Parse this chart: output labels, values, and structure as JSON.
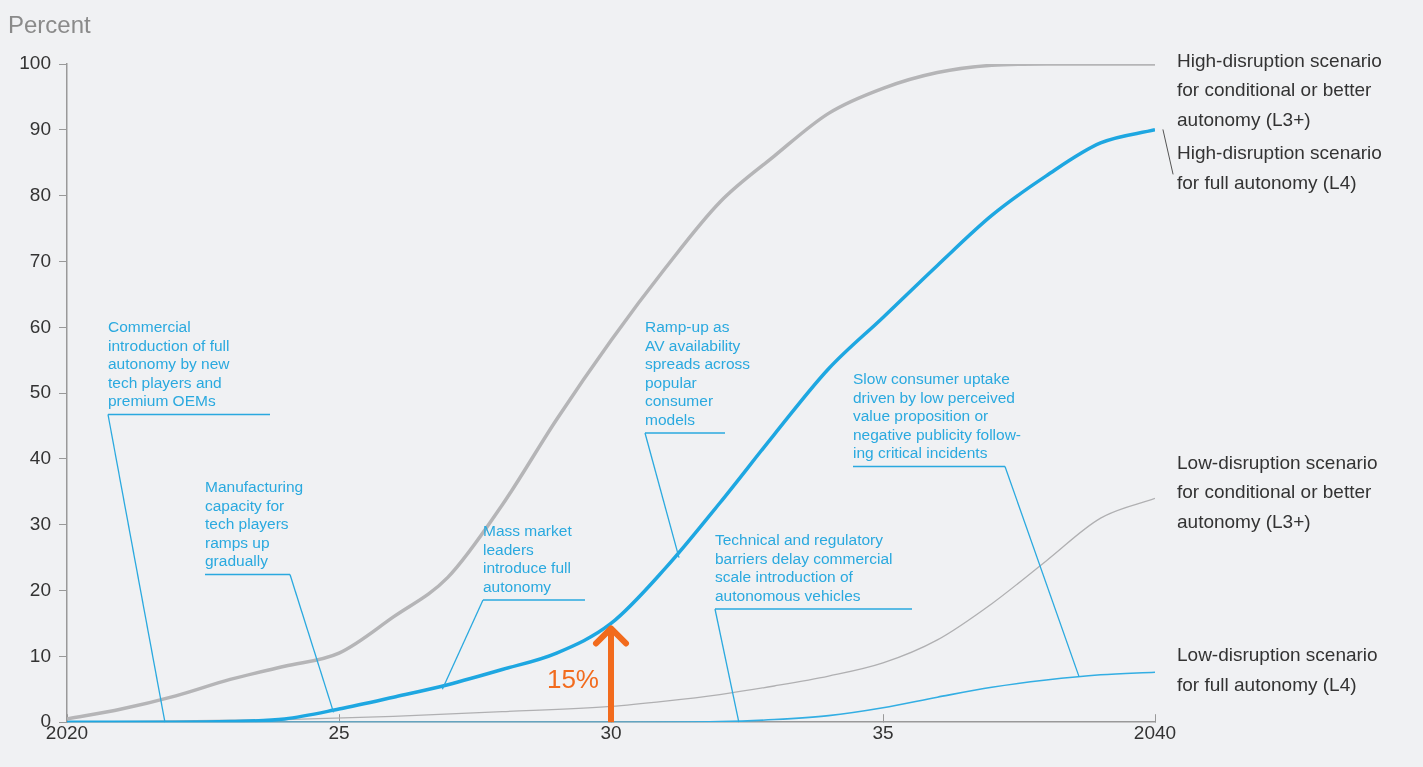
{
  "chart_data": {
    "type": "line",
    "ylabel": "Percent",
    "xlim": [
      2020,
      2040
    ],
    "xticks": [
      {
        "value": 2020,
        "label": "2020"
      },
      {
        "value": 2025,
        "label": "25"
      },
      {
        "value": 2030,
        "label": "30"
      },
      {
        "value": 2035,
        "label": "35"
      },
      {
        "value": 2040,
        "label": "2040"
      }
    ],
    "ylim": [
      0,
      100
    ],
    "yticks": [
      0,
      10,
      20,
      30,
      40,
      50,
      60,
      70,
      80,
      90,
      100
    ],
    "legend": false,
    "marker": "none",
    "series": [
      {
        "name": "High-disruption scenario\nfor conditional or better\nautonomy (L3+)",
        "color": "#b5b5b7",
        "x": [
          2020,
          2021,
          2022,
          2023,
          2024,
          2025,
          2026,
          2027,
          2028,
          2029,
          2030,
          2031,
          2032,
          2033,
          2034,
          2035,
          2036,
          2037,
          2038,
          2040
        ],
        "values": [
          0.5,
          2,
          4,
          6.5,
          8.5,
          10.5,
          16,
          22,
          33,
          46,
          58,
          69,
          79,
          86,
          92.5,
          96.3,
          98.7,
          99.8,
          100,
          100
        ]
      },
      {
        "name": "High-disruption scenario\nfor full autonomy (L4)",
        "color": "#1ea7e1",
        "x": [
          2020,
          2022,
          2023,
          2024,
          2025,
          2026,
          2027,
          2028,
          2029,
          2030,
          2031,
          2032,
          2033,
          2034,
          2035,
          2036,
          2037,
          2038,
          2039,
          2040
        ],
        "values": [
          0,
          0,
          0.1,
          0.5,
          2,
          3.8,
          5.7,
          8,
          10.5,
          15,
          23.4,
          33.3,
          43.7,
          53.7,
          61.5,
          69.4,
          77,
          83,
          88,
          90
        ]
      },
      {
        "name": "Low-disruption scenario\nfor conditional or better\nautonomy (L3+)",
        "color": "#b0b0b2",
        "x": [
          2020,
          2024,
          2026,
          2028,
          2030,
          2031,
          2032,
          2033,
          2034,
          2035,
          2036,
          2037,
          2038,
          2039,
          2040
        ],
        "values": [
          0,
          0.4,
          0.9,
          1.6,
          2.4,
          3.2,
          4.2,
          5.5,
          7,
          9,
          12.5,
          18,
          24.5,
          31,
          34
        ]
      },
      {
        "name": "Low-disruption scenario\nfor full autonomy (L4)",
        "color": "#33aee3",
        "x": [
          2020,
          2030,
          2032,
          2033,
          2034,
          2035,
          2036,
          2037,
          2038,
          2039,
          2040
        ],
        "values": [
          0,
          0,
          0.1,
          0.4,
          1,
          2.2,
          3.8,
          5.3,
          6.4,
          7.2,
          7.6
        ]
      }
    ],
    "annotations": [
      {
        "text": "Commercial\nintroduction of full\nautonomy by new\ntech players and\npremium OEMs",
        "x": 2021.8,
        "y": 0
      },
      {
        "text": "Manufacturing\ncapacity for\ntech players\nramps up\ngradually",
        "x": 2024.9,
        "y": 1.5
      },
      {
        "text": "Mass market\nleaders\nintroduce full\nautonomy",
        "x": 2026.9,
        "y": 5
      },
      {
        "text": "Ramp-up as\nAV availability\nspreads across\npopular\nconsumer\nmodels",
        "x": 2031.25,
        "y": 25
      },
      {
        "text": "Technical and regulatory\nbarriers delay commercial\nscale introduction of\nautonomous vehicles",
        "x": 2032.35,
        "y": 0
      },
      {
        "text": "Slow consumer uptake\ndriven by low perceived\nvalue proposition or\nnegative publicity follow-\ning critical incidents",
        "x": 2038.6,
        "y": 7
      },
      {
        "text": "15%",
        "x": 2030,
        "y": 15
      }
    ]
  }
}
